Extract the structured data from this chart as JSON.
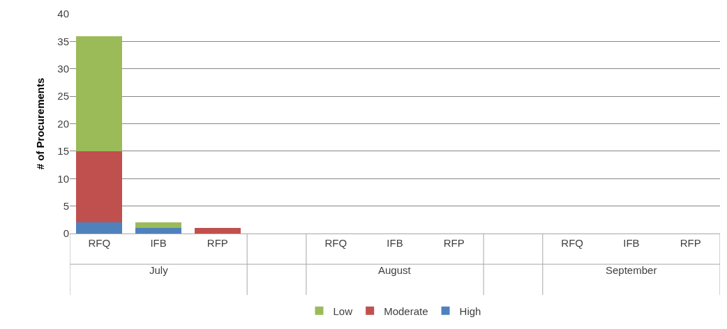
{
  "chart_data": {
    "type": "bar",
    "stacked": true,
    "ylabel": "# of Procurements",
    "categories": [
      "RFQ",
      "IFB",
      "RFP",
      null,
      "RFQ",
      "IFB",
      "RFP",
      null,
      "RFQ",
      "IFB",
      "RFP"
    ],
    "series": [
      {
        "name": "High",
        "color": "#4f81bd",
        "values": [
          2,
          1,
          0,
          null,
          0,
          0,
          0,
          null,
          0,
          0,
          0
        ]
      },
      {
        "name": "Moderate",
        "color": "#c0504d",
        "values": [
          13,
          0,
          1,
          null,
          0,
          0,
          0,
          null,
          0,
          0,
          0
        ]
      },
      {
        "name": "Low",
        "color": "#9bbb59",
        "values": [
          21,
          1,
          0,
          null,
          0,
          0,
          0,
          null,
          0,
          0,
          0
        ]
      }
    ],
    "annotations": [
      "July",
      "August",
      "September"
    ],
    "ylim": [
      0,
      40
    ],
    "yticks": [
      0,
      5,
      10,
      15,
      20,
      25,
      30,
      35,
      40
    ],
    "grid": "y",
    "legend": "bottom"
  }
}
